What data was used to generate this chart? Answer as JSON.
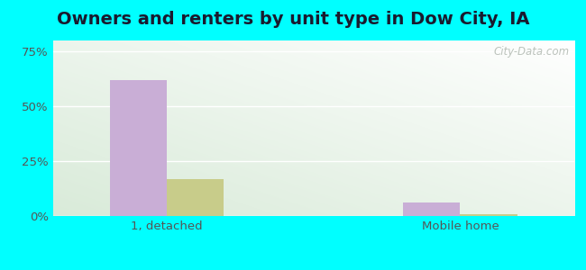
{
  "title": "Owners and renters by unit type in Dow City, IA",
  "categories": [
    "1, detached",
    "Mobile home"
  ],
  "owner_values": [
    62.0,
    6.0
  ],
  "renter_values": [
    17.0,
    1.0
  ],
  "owner_color": "#c9aed6",
  "renter_color": "#c8cc8a",
  "yticks": [
    0,
    25,
    50,
    75
  ],
  "ytick_labels": [
    "0%",
    "25%",
    "50%",
    "75%"
  ],
  "ylim": [
    0,
    80
  ],
  "bar_width": 0.35,
  "outer_bg": "#00ffff",
  "title_fontsize": 14,
  "legend_fontsize": 10,
  "tick_fontsize": 9.5,
  "watermark": "City-Data.com",
  "bg_colors": [
    "#d8eeda",
    "#f0faf8"
  ],
  "x_positions": [
    1.0,
    2.8
  ],
  "xlim": [
    0.3,
    3.5
  ]
}
